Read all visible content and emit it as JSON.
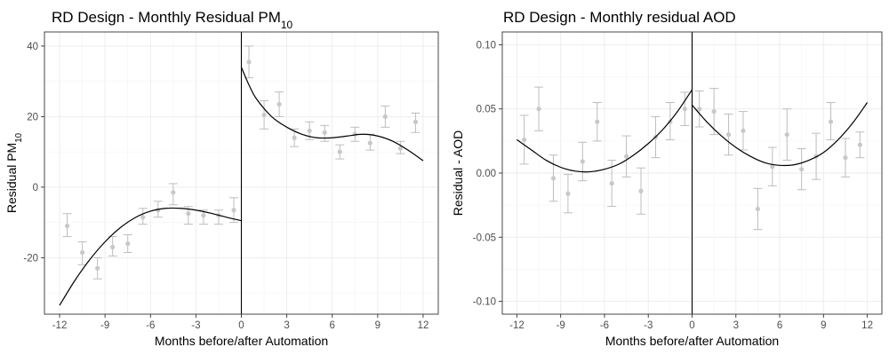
{
  "chart_data": [
    {
      "type": "scatter",
      "title": "RD Design - Monthly Residual PM",
      "title_subscript": "10",
      "xlabel": "Months before/after Automation",
      "ylabel": "Residual PM",
      "ylabel_subscript": "10",
      "xlim": [
        -13,
        13
      ],
      "ylim": [
        -36,
        44
      ],
      "x_ticks": [
        -12,
        -9,
        -6,
        -3,
        0,
        3,
        6,
        9,
        12
      ],
      "x_tick_labels": [
        "-12",
        "-9",
        "-6",
        "-3",
        "0",
        "3",
        "6",
        "9",
        "12"
      ],
      "y_ticks": [
        -20,
        0,
        20,
        40
      ],
      "y_tick_labels": [
        "-20",
        "0",
        "20",
        "40"
      ],
      "y_minor": [
        -30,
        -10,
        10,
        30
      ],
      "cutoff": 0,
      "grid": true,
      "point_color": "#c8c8c8",
      "errorbar_color": "#bdbdbd",
      "line_color": "#000000",
      "points": [
        {
          "x": -11.5,
          "y": -11,
          "lo": -14,
          "hi": -7.5
        },
        {
          "x": -10.5,
          "y": -18.5,
          "lo": -22,
          "hi": -15.5
        },
        {
          "x": -9.5,
          "y": -23,
          "lo": -26,
          "hi": -20
        },
        {
          "x": -8.5,
          "y": -17,
          "lo": -19.5,
          "hi": -14
        },
        {
          "x": -7.5,
          "y": -16,
          "lo": -18.5,
          "hi": -13.5
        },
        {
          "x": -6.5,
          "y": -8.5,
          "lo": -10.5,
          "hi": -6
        },
        {
          "x": -5.5,
          "y": -6.5,
          "lo": -8.5,
          "hi": -4
        },
        {
          "x": -4.5,
          "y": -1.5,
          "lo": -5,
          "hi": 1
        },
        {
          "x": -3.5,
          "y": -7.5,
          "lo": -10.5,
          "hi": -5.5
        },
        {
          "x": -2.5,
          "y": -8,
          "lo": -10.5,
          "hi": -6.5
        },
        {
          "x": -1.5,
          "y": -8,
          "lo": -10.5,
          "hi": -6.5
        },
        {
          "x": -0.5,
          "y": -6.5,
          "lo": -10,
          "hi": -3
        },
        {
          "x": 0.5,
          "y": 35.5,
          "lo": 31,
          "hi": 40
        },
        {
          "x": 1.5,
          "y": 20.5,
          "lo": 16.5,
          "hi": 24.5
        },
        {
          "x": 2.5,
          "y": 23.5,
          "lo": 20,
          "hi": 27
        },
        {
          "x": 3.5,
          "y": 14,
          "lo": 11.5,
          "hi": 16.5
        },
        {
          "x": 4.5,
          "y": 16,
          "lo": 13.5,
          "hi": 18.5
        },
        {
          "x": 5.5,
          "y": 15.5,
          "lo": 13,
          "hi": 17.5
        },
        {
          "x": 6.5,
          "y": 10,
          "lo": 8,
          "hi": 12
        },
        {
          "x": 7.5,
          "y": 15,
          "lo": 13,
          "hi": 17
        },
        {
          "x": 8.5,
          "y": 12.5,
          "lo": 10.5,
          "hi": 15
        },
        {
          "x": 9.5,
          "y": 20,
          "lo": 17,
          "hi": 23
        },
        {
          "x": 10.5,
          "y": 11,
          "lo": 9.5,
          "hi": 13
        },
        {
          "x": 11.5,
          "y": 18.5,
          "lo": 15.5,
          "hi": 21
        }
      ],
      "fit_left": [
        [
          -12,
          -33.5
        ],
        [
          -11,
          -26.5
        ],
        [
          -10,
          -20.5
        ],
        [
          -9,
          -15.5
        ],
        [
          -8,
          -11.5
        ],
        [
          -7,
          -8.6
        ],
        [
          -6,
          -6.8
        ],
        [
          -5,
          -6
        ],
        [
          -4,
          -6
        ],
        [
          -3,
          -6.5
        ],
        [
          -2,
          -7.4
        ],
        [
          -1,
          -8.5
        ],
        [
          0,
          -9.5
        ]
      ],
      "fit_right": [
        [
          0,
          34
        ],
        [
          0.5,
          29
        ],
        [
          1,
          25
        ],
        [
          2,
          20
        ],
        [
          3,
          17
        ],
        [
          4,
          15
        ],
        [
          5,
          14
        ],
        [
          6,
          14
        ],
        [
          7,
          14.5
        ],
        [
          8,
          15
        ],
        [
          9,
          14.5
        ],
        [
          10,
          13
        ],
        [
          11,
          10.5
        ],
        [
          12,
          7.5
        ]
      ]
    },
    {
      "type": "scatter",
      "title": "RD Design - Monthly residual AOD",
      "xlabel": "Months before/after Automation",
      "ylabel": "Residual - AOD",
      "xlim": [
        -13,
        13
      ],
      "ylim": [
        -0.11,
        0.11
      ],
      "x_ticks": [
        -12,
        -9,
        -6,
        -3,
        0,
        3,
        6,
        9,
        12
      ],
      "x_tick_labels": [
        "-12",
        "-9",
        "-6",
        "-3",
        "0",
        "3",
        "6",
        "9",
        "12"
      ],
      "y_ticks": [
        -0.1,
        -0.05,
        0,
        0.05,
        0.1
      ],
      "y_tick_labels": [
        "-0.10",
        "-0.05",
        "0.00",
        "0.05",
        "0.10"
      ],
      "y_minor": [
        -0.075,
        -0.025,
        0.025,
        0.075
      ],
      "cutoff": 0,
      "grid": true,
      "point_color": "#c8c8c8",
      "errorbar_color": "#bdbdbd",
      "line_color": "#000000",
      "points": [
        {
          "x": -11.5,
          "y": 0.026,
          "lo": 0.007,
          "hi": 0.045
        },
        {
          "x": -10.5,
          "y": 0.05,
          "lo": 0.033,
          "hi": 0.067
        },
        {
          "x": -9.5,
          "y": -0.004,
          "lo": -0.022,
          "hi": 0.014
        },
        {
          "x": -8.5,
          "y": -0.016,
          "lo": -0.031,
          "hi": -0.001
        },
        {
          "x": -7.5,
          "y": 0.009,
          "lo": -0.006,
          "hi": 0.024
        },
        {
          "x": -6.5,
          "y": 0.04,
          "lo": 0.025,
          "hi": 0.055
        },
        {
          "x": -5.5,
          "y": -0.008,
          "lo": -0.026,
          "hi": 0.01
        },
        {
          "x": -4.5,
          "y": 0.013,
          "lo": -0.003,
          "hi": 0.029
        },
        {
          "x": -3.5,
          "y": -0.014,
          "lo": -0.032,
          "hi": 0.004
        },
        {
          "x": -2.5,
          "y": 0.028,
          "lo": 0.012,
          "hi": 0.044
        },
        {
          "x": -1.5,
          "y": 0.04,
          "lo": 0.026,
          "hi": 0.055
        },
        {
          "x": -0.5,
          "y": 0.05,
          "lo": 0.037,
          "hi": 0.063
        },
        {
          "x": 0.5,
          "y": 0.05,
          "lo": 0.036,
          "hi": 0.064
        },
        {
          "x": 1.5,
          "y": 0.048,
          "lo": 0.03,
          "hi": 0.066
        },
        {
          "x": 2.5,
          "y": 0.03,
          "lo": 0.014,
          "hi": 0.046
        },
        {
          "x": 3.5,
          "y": 0.033,
          "lo": 0.018,
          "hi": 0.048
        },
        {
          "x": 4.5,
          "y": -0.028,
          "lo": -0.044,
          "hi": -0.012
        },
        {
          "x": 5.5,
          "y": 0.005,
          "lo": -0.01,
          "hi": 0.02
        },
        {
          "x": 6.5,
          "y": 0.03,
          "lo": 0.01,
          "hi": 0.05
        },
        {
          "x": 7.5,
          "y": 0.003,
          "lo": -0.013,
          "hi": 0.019
        },
        {
          "x": 8.5,
          "y": 0.013,
          "lo": -0.005,
          "hi": 0.031
        },
        {
          "x": 9.5,
          "y": 0.04,
          "lo": 0.026,
          "hi": 0.055
        },
        {
          "x": 10.5,
          "y": 0.012,
          "lo": -0.003,
          "hi": 0.027
        },
        {
          "x": 11.5,
          "y": 0.022,
          "lo": 0.012,
          "hi": 0.032
        }
      ],
      "fit_left": [
        [
          -12,
          0.026
        ],
        [
          -11,
          0.018
        ],
        [
          -10,
          0.01
        ],
        [
          -9,
          0.0045
        ],
        [
          -8,
          0.0015
        ],
        [
          -7,
          0.001
        ],
        [
          -6,
          0.003
        ],
        [
          -5,
          0.007
        ],
        [
          -4,
          0.014
        ],
        [
          -3,
          0.023
        ],
        [
          -2,
          0.034
        ],
        [
          -1,
          0.048
        ],
        [
          0,
          0.065
        ]
      ],
      "fit_right": [
        [
          0,
          0.053
        ],
        [
          1,
          0.04
        ],
        [
          2,
          0.029
        ],
        [
          3,
          0.02
        ],
        [
          4,
          0.013
        ],
        [
          5,
          0.008
        ],
        [
          6,
          0.006
        ],
        [
          7,
          0.0065
        ],
        [
          8,
          0.01
        ],
        [
          9,
          0.016
        ],
        [
          10,
          0.026
        ],
        [
          11,
          0.039
        ],
        [
          12,
          0.055
        ]
      ]
    }
  ]
}
